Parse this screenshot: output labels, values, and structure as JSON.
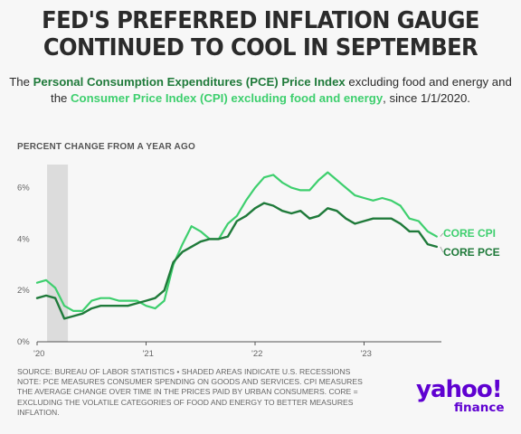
{
  "header": {
    "title_line1": "FED'S PREFERRED INFLATION GAUGE",
    "title_line2": "CONTINUED TO COOL IN SEPTEMBER",
    "subtitle": {
      "part1": "The ",
      "pce_name": "Personal Consumption Expenditures (PCE) Price Index",
      "part2": " excluding food and energy and the ",
      "cpi_name": "Consumer Price Index (CPI) excluding food and energy",
      "part3": ", since 1/1/2020."
    }
  },
  "footer": {
    "lines": [
      "SOURCE: BUREAU OF LABOR STATISTICS • SHADED AREAS INDICATE U.S. RECESSIONS",
      "NOTE: PCE MEASURES CONSUMER SPENDING ON GOODS AND SERVICES. CPI MEASURES",
      "THE AVERAGE CHANGE OVER TIME IN THE PRICES PAID BY URBAN CONSUMERS. CORE =",
      "EXCLUDING THE VOLATILE CATEGORIES OF FOOD AND ENERGY TO BETTER MEASURES",
      "INFLATION."
    ]
  },
  "logo": {
    "brand": "yahoo!",
    "product": "finance",
    "color": "#5f01d1"
  },
  "colors": {
    "pce": "#1f7a3a",
    "cpi": "#3ecf6e",
    "recession": "#dcdcdc"
  },
  "chart_data": {
    "type": "line",
    "ylabel": "PERCENT CHANGE FROM A YEAR AGO",
    "ylim": [
      0,
      7
    ],
    "yticks": [
      0,
      2,
      4,
      6
    ],
    "ytick_labels": [
      "0%",
      "2%",
      "4%",
      "6%"
    ],
    "xtick_labels": [
      "'20",
      "'21",
      "'22",
      "'23"
    ],
    "grid": false,
    "recession_shading": {
      "start": "2020-02",
      "end": "2020-04"
    },
    "x": [
      "2020-01",
      "2020-02",
      "2020-03",
      "2020-04",
      "2020-05",
      "2020-06",
      "2020-07",
      "2020-08",
      "2020-09",
      "2020-10",
      "2020-11",
      "2020-12",
      "2021-01",
      "2021-02",
      "2021-03",
      "2021-04",
      "2021-05",
      "2021-06",
      "2021-07",
      "2021-08",
      "2021-09",
      "2021-10",
      "2021-11",
      "2021-12",
      "2022-01",
      "2022-02",
      "2022-03",
      "2022-04",
      "2022-05",
      "2022-06",
      "2022-07",
      "2022-08",
      "2022-09",
      "2022-10",
      "2022-11",
      "2022-12",
      "2023-01",
      "2023-02",
      "2023-03",
      "2023-04",
      "2023-05",
      "2023-06",
      "2023-07",
      "2023-08",
      "2023-09"
    ],
    "series": [
      {
        "name": "CORE CPI",
        "values": [
          2.3,
          2.4,
          2.1,
          1.4,
          1.2,
          1.2,
          1.6,
          1.7,
          1.7,
          1.6,
          1.6,
          1.6,
          1.4,
          1.3,
          1.6,
          3.0,
          3.8,
          4.5,
          4.3,
          4.0,
          4.0,
          4.6,
          4.9,
          5.5,
          6.0,
          6.4,
          6.5,
          6.2,
          6.0,
          5.9,
          5.9,
          6.3,
          6.6,
          6.3,
          6.0,
          5.7,
          5.6,
          5.5,
          5.6,
          5.5,
          5.3,
          4.8,
          4.7,
          4.3,
          4.1
        ]
      },
      {
        "name": "CORE PCE",
        "values": [
          1.7,
          1.8,
          1.7,
          0.9,
          1.0,
          1.1,
          1.3,
          1.4,
          1.4,
          1.4,
          1.4,
          1.5,
          1.6,
          1.7,
          2.0,
          3.1,
          3.5,
          3.7,
          3.9,
          4.0,
          4.0,
          4.1,
          4.7,
          4.9,
          5.2,
          5.4,
          5.3,
          5.1,
          5.0,
          5.1,
          4.8,
          4.9,
          5.2,
          5.1,
          4.8,
          4.6,
          4.7,
          4.8,
          4.8,
          4.8,
          4.6,
          4.3,
          4.3,
          3.8,
          3.7
        ]
      }
    ]
  }
}
